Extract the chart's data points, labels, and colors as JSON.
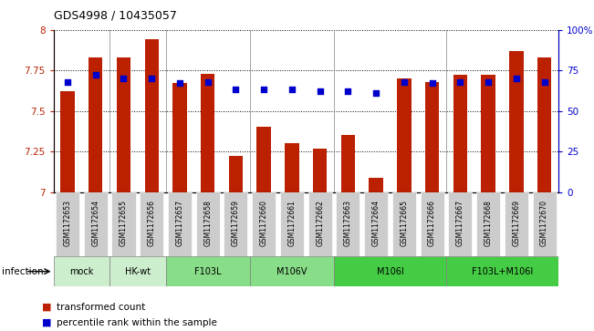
{
  "title": "GDS4998 / 10435057",
  "samples": [
    "GSM1172653",
    "GSM1172654",
    "GSM1172655",
    "GSM1172656",
    "GSM1172657",
    "GSM1172658",
    "GSM1172659",
    "GSM1172660",
    "GSM1172661",
    "GSM1172662",
    "GSM1172663",
    "GSM1172664",
    "GSM1172665",
    "GSM1172666",
    "GSM1172667",
    "GSM1172668",
    "GSM1172669",
    "GSM1172670"
  ],
  "bar_values": [
    7.62,
    7.83,
    7.83,
    7.94,
    7.67,
    7.73,
    7.22,
    7.4,
    7.3,
    7.27,
    7.35,
    7.09,
    7.7,
    7.68,
    7.72,
    7.72,
    7.87,
    7.83
  ],
  "percentile_values": [
    68,
    72,
    70,
    70,
    67,
    68,
    63,
    63,
    63,
    62,
    62,
    61,
    68,
    67,
    68,
    68,
    70,
    68
  ],
  "ylim_left": [
    7.0,
    8.0
  ],
  "ylim_right": [
    0,
    100
  ],
  "yticks_left": [
    7.0,
    7.25,
    7.5,
    7.75,
    8.0
  ],
  "ytick_labels_left": [
    "7",
    "7.25",
    "7.5",
    "7.75",
    "8"
  ],
  "yticks_right": [
    0,
    25,
    50,
    75,
    100
  ],
  "ytick_labels_right": [
    "0",
    "25",
    "50",
    "75",
    "100%"
  ],
  "bar_color": "#bb2000",
  "dot_color": "#0000cc",
  "groups_info": [
    {
      "label": "mock",
      "indices": [
        0,
        1
      ],
      "color": "#cceecc"
    },
    {
      "label": "HK-wt",
      "indices": [
        2,
        3
      ],
      "color": "#cceecc"
    },
    {
      "label": "F103L",
      "indices": [
        4,
        5,
        6
      ],
      "color": "#88dd88"
    },
    {
      "label": "M106V",
      "indices": [
        7,
        8,
        9
      ],
      "color": "#88dd88"
    },
    {
      "label": "M106I",
      "indices": [
        10,
        11,
        12,
        13
      ],
      "color": "#44cc44"
    },
    {
      "label": "F103L+M106I",
      "indices": [
        14,
        15,
        16,
        17
      ],
      "color": "#44cc44"
    }
  ],
  "group_boundaries": [
    1.5,
    3.5,
    6.5,
    9.5,
    13.5
  ],
  "infection_label": "infection",
  "legend_bar_label": "transformed count",
  "legend_dot_label": "percentile rank within the sample",
  "sample_box_color": "#cccccc",
  "bar_width": 0.5
}
